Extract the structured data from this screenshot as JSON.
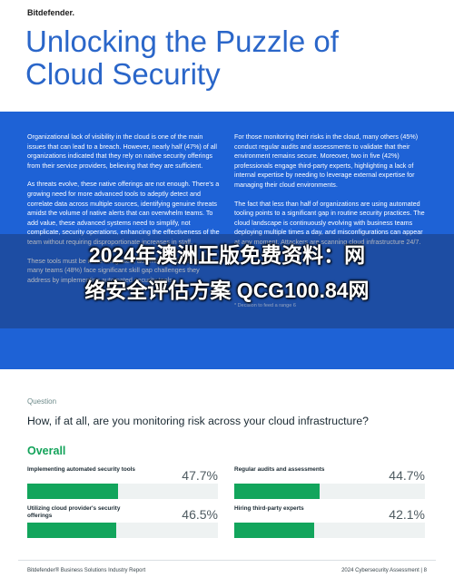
{
  "header": {
    "brand": "Bitdefender.",
    "title": "Unlocking the Puzzle of Cloud Security"
  },
  "columns": [
    [
      "Organizational lack of visibility in the cloud is one of the main issues that can lead to a breach. However, nearly half (47%) of all organizations indicated that they rely on native security offerings from their service providers, believing that they are sufficient.",
      "As threats evolve, these native offerings are not enough. There's a growing need for more advanced tools to adeptly detect and correlate data across multiple sources, identifying genuine threats amidst the volume of native alerts that can overwhelm teams. To add value, these advanced systems need to simplify, not complicate, security operations, enhancing the effectiveness of the team without requiring disproportionate increases in staff.",
      "These tools must be more integrated, automated and efficient, as many teams (48%) face significant skill gap challenges they address by implementing automated security tools."
    ],
    [
      "For those monitoring their risks in the cloud, many others (45%) conduct regular audits and assessments to validate that their environment remains secure. Moreover, two in five (42%) professionals engage third-party experts, highlighting a lack of internal expertise by needing to leverage external expertise for managing their cloud environments.",
      "The fact that less than half of organizations are using automated tooling points to a significant gap in routine security practices. The cloud landscape is continuously evolving with business teams deploying multiple times a day, and misconfigurations can appear at any moment. Attackers are scanning cloud infrastructure 24/7."
    ]
  ],
  "footnote": "* Decision to feed a range 6",
  "watermark": [
    "2024年澳洲正版免费资料：网",
    "络安全评估方案 QCG100.84网"
  ],
  "survey": {
    "label": "Question",
    "question": "How, if at all, are you monitoring risk across your cloud infrastructure?",
    "section": "Overall",
    "xlim": [
      0,
      100
    ],
    "items": [
      {
        "label": "Implementing automated security tools",
        "value": 47.7,
        "value_label": "47.7%"
      },
      {
        "label": "Utilizing cloud provider's security offerings",
        "value": 46.5,
        "value_label": "46.5%"
      },
      {
        "label": "Regular audits and assessments",
        "value": 44.7,
        "value_label": "44.7%"
      },
      {
        "label": "Hiring third-party experts",
        "value": 42.1,
        "value_label": "42.1%"
      }
    ]
  },
  "footer": {
    "left": "Bitdefender® Business Solutions Industry Report",
    "right": "2024 Cybersecurity Assessment | 8"
  }
}
